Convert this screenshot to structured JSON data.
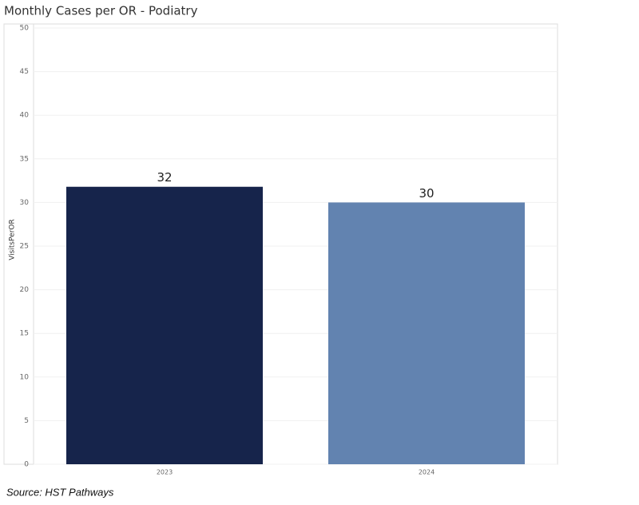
{
  "chart_data": {
    "type": "bar",
    "title": "Monthly Cases per OR - Podiatry",
    "y_label": "VisitsPerOR",
    "categories": [
      "2023",
      "2024"
    ],
    "values": [
      31.8,
      30
    ],
    "value_labels": [
      "32",
      "30"
    ],
    "colors": [
      "#16244b",
      "#6283b0"
    ],
    "ylim": [
      0,
      50
    ],
    "yticks": [
      0,
      5,
      10,
      15,
      20,
      25,
      30,
      35,
      40,
      45,
      50
    ],
    "grid": true,
    "source": "Source: HST Pathways"
  }
}
